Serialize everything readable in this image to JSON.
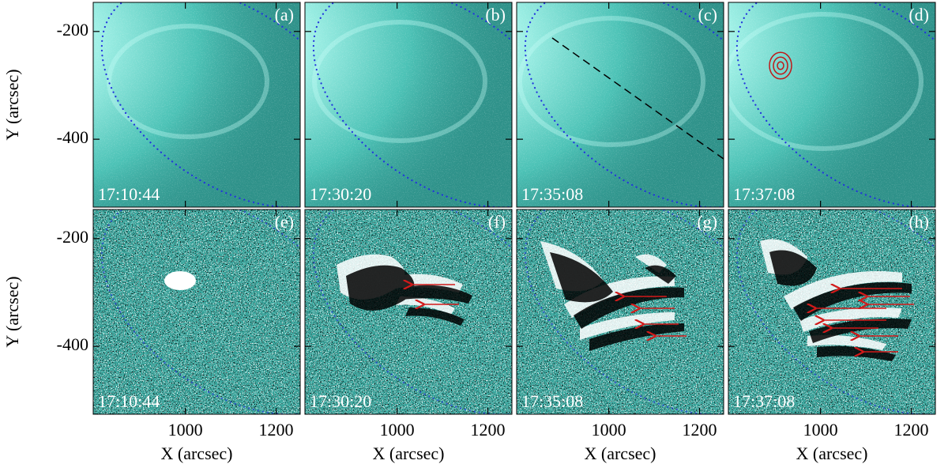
{
  "figure": {
    "x_label": "X (arcsec)",
    "y_label": "Y (arcsec)",
    "xlim": [
      797,
      1253
    ],
    "ylim": [
      -526,
      -146
    ],
    "xticks": [
      1000,
      1200
    ],
    "yticks": [
      -200,
      -400
    ],
    "panels": [
      {
        "label": "(a)",
        "time": "17:10:44"
      },
      {
        "label": "(b)",
        "time": "17:30:20"
      },
      {
        "label": "(c)",
        "time": "17:35:08"
      },
      {
        "label": "(d)",
        "time": "17:37:08"
      },
      {
        "label": "(e)",
        "time": "17:10:44"
      },
      {
        "label": "(f)",
        "time": "17:30:20"
      },
      {
        "label": "(g)",
        "time": "17:35:08"
      },
      {
        "label": "(h)",
        "time": "17:37:08"
      }
    ]
  }
}
